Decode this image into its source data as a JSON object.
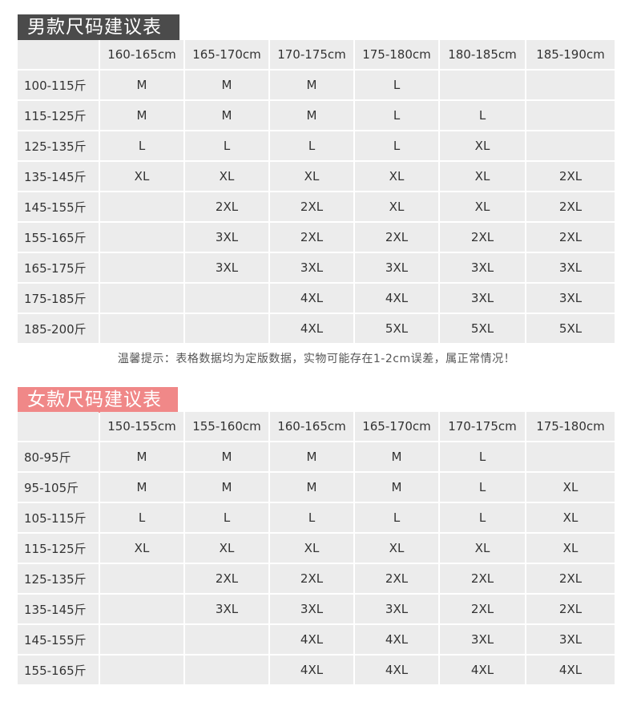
{
  "men": {
    "title": "男款尺码建议表",
    "title_color": "#4b4b4b",
    "columns": [
      "160-165cm",
      "165-170cm",
      "170-175cm",
      "175-180cm",
      "180-185cm",
      "185-190cm"
    ],
    "rows": [
      {
        "weight": "100-115斤",
        "sizes": [
          "M",
          "M",
          "M",
          "L",
          "",
          ""
        ]
      },
      {
        "weight": "115-125斤",
        "sizes": [
          "M",
          "M",
          "M",
          "L",
          "L",
          ""
        ]
      },
      {
        "weight": "125-135斤",
        "sizes": [
          "L",
          "L",
          "L",
          "L",
          "XL",
          ""
        ]
      },
      {
        "weight": "135-145斤",
        "sizes": [
          "XL",
          "XL",
          "XL",
          "XL",
          "XL",
          "2XL"
        ]
      },
      {
        "weight": "145-155斤",
        "sizes": [
          "",
          "2XL",
          "2XL",
          "XL",
          "XL",
          "2XL"
        ]
      },
      {
        "weight": "155-165斤",
        "sizes": [
          "",
          "3XL",
          "2XL",
          "2XL",
          "2XL",
          "2XL"
        ]
      },
      {
        "weight": "165-175斤",
        "sizes": [
          "",
          "3XL",
          "3XL",
          "3XL",
          "3XL",
          "3XL"
        ]
      },
      {
        "weight": "175-185斤",
        "sizes": [
          "",
          "",
          "4XL",
          "4XL",
          "3XL",
          "3XL"
        ]
      },
      {
        "weight": "185-200斤",
        "sizes": [
          "",
          "",
          "4XL",
          "5XL",
          "5XL",
          "5XL"
        ]
      }
    ]
  },
  "note": "温馨提示：表格数据均为定版数据，实物可能存在1-2cm误差，属正常情况！",
  "women": {
    "title": "女款尺码建议表",
    "title_color": "#f08888",
    "columns": [
      "150-155cm",
      "155-160cm",
      "160-165cm",
      "165-170cm",
      "170-175cm",
      "175-180cm"
    ],
    "rows": [
      {
        "weight": "80-95斤",
        "sizes": [
          "M",
          "M",
          "M",
          "M",
          "L",
          ""
        ]
      },
      {
        "weight": "95-105斤",
        "sizes": [
          "M",
          "M",
          "M",
          "M",
          "L",
          "XL"
        ]
      },
      {
        "weight": "105-115斤",
        "sizes": [
          "L",
          "L",
          "L",
          "L",
          "L",
          "XL"
        ]
      },
      {
        "weight": "115-125斤",
        "sizes": [
          "XL",
          "XL",
          "XL",
          "XL",
          "XL",
          "XL"
        ]
      },
      {
        "weight": "125-135斤",
        "sizes": [
          "",
          "2XL",
          "2XL",
          "2XL",
          "2XL",
          "2XL"
        ]
      },
      {
        "weight": "135-145斤",
        "sizes": [
          "",
          "3XL",
          "3XL",
          "3XL",
          "2XL",
          "2XL"
        ]
      },
      {
        "weight": "145-155斤",
        "sizes": [
          "",
          "",
          "4XL",
          "4XL",
          "3XL",
          "3XL"
        ]
      },
      {
        "weight": "155-165斤",
        "sizes": [
          "",
          "",
          "4XL",
          "4XL",
          "4XL",
          "4XL"
        ]
      }
    ]
  }
}
